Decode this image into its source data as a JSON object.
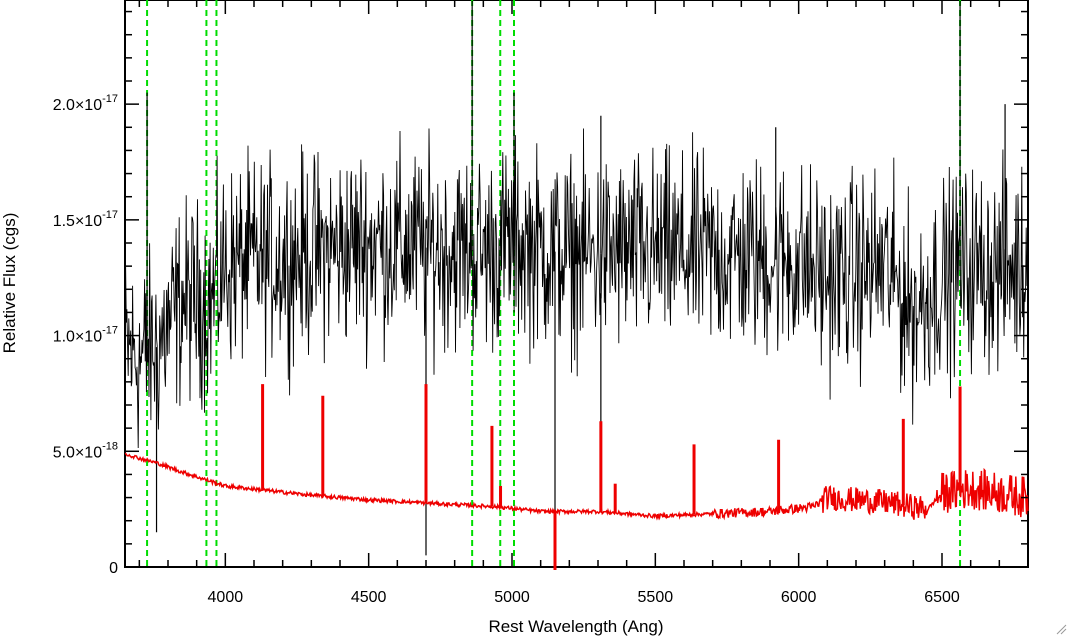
{
  "chart_data": {
    "type": "line",
    "xlabel": "Rest Wavelength (Ang)",
    "ylabel": "Relative Flux (cgs)",
    "xlim": [
      3650,
      6800
    ],
    "ylim": [
      0,
      2.45e-17
    ],
    "x_ticks": [
      {
        "value": 4000,
        "label": "4000"
      },
      {
        "value": 4500,
        "label": "4500"
      },
      {
        "value": 5000,
        "label": "5000"
      },
      {
        "value": 5500,
        "label": "5500"
      },
      {
        "value": 6000,
        "label": "6000"
      },
      {
        "value": 6500,
        "label": "6500"
      }
    ],
    "y_ticks": [
      {
        "value": 0,
        "mantissa": "0",
        "exponent": ""
      },
      {
        "value": 5e-18,
        "mantissa": "5.0×10",
        "exponent": "-18"
      },
      {
        "value": 1e-17,
        "mantissa": "1.0×10",
        "exponent": "-17"
      },
      {
        "value": 1.5e-17,
        "mantissa": "1.5×10",
        "exponent": "-17"
      },
      {
        "value": 2e-17,
        "mantissa": "2.0×10",
        "exponent": "-17"
      }
    ],
    "vlines": {
      "color": "#00dd00",
      "style": "dashed",
      "x": [
        3727,
        3934,
        3969,
        4861,
        4959,
        5007,
        6563
      ]
    },
    "series": [
      {
        "color": "#000000",
        "style": "noisy-spectrum",
        "baseline": [
          [
            3650,
            9.5e-18
          ],
          [
            3700,
            9e-18
          ],
          [
            3760,
            9.5e-18
          ],
          [
            3850,
            1.15e-17
          ],
          [
            3950,
            1.15e-17
          ],
          [
            4000,
            1.3e-17
          ],
          [
            4100,
            1.32e-17
          ],
          [
            4300,
            1.35e-17
          ],
          [
            4500,
            1.4e-17
          ],
          [
            4700,
            1.38e-17
          ],
          [
            4900,
            1.36e-17
          ],
          [
            5000,
            1.4e-17
          ],
          [
            5200,
            1.35e-17
          ],
          [
            5500,
            1.36e-17
          ],
          [
            5800,
            1.34e-17
          ],
          [
            6000,
            1.32e-17
          ],
          [
            6100,
            1.25e-17
          ],
          [
            6300,
            1.3e-17
          ],
          [
            6400,
            1.1e-17
          ],
          [
            6500,
            1.25e-17
          ],
          [
            6600,
            1.3e-17
          ],
          [
            6700,
            1.28e-17
          ],
          [
            6800,
            1.3e-17
          ]
        ],
        "features": [
          [
            3727,
            2.05e-17
          ],
          [
            3760,
            1.5e-18
          ],
          [
            4700,
            5e-19
          ],
          [
            4861,
            2.45e-17
          ],
          [
            5007,
            2.05e-17
          ],
          [
            5150,
            5e-19
          ],
          [
            5310,
            1.95e-17
          ],
          [
            5310,
            3e-18
          ],
          [
            5920,
            1.9e-17
          ],
          [
            6563,
            2.45e-17
          ],
          [
            6720,
            2e-17
          ]
        ]
      },
      {
        "color": "#ee0000",
        "style": "model-spectrum",
        "baseline": [
          [
            3650,
            4.9e-18
          ],
          [
            3700,
            4.7e-18
          ],
          [
            3760,
            4.5e-18
          ],
          [
            3850,
            4.1e-18
          ],
          [
            4000,
            3.5e-18
          ],
          [
            4150,
            3.3e-18
          ],
          [
            4300,
            3.1e-18
          ],
          [
            4500,
            2.9e-18
          ],
          [
            4800,
            2.7e-18
          ],
          [
            4950,
            2.6e-18
          ],
          [
            5100,
            2.4e-18
          ],
          [
            5300,
            2.4e-18
          ],
          [
            5500,
            2.2e-18
          ],
          [
            5700,
            2.3e-18
          ],
          [
            5900,
            2.4e-18
          ],
          [
            6050,
            2.6e-18
          ],
          [
            6100,
            3e-18
          ],
          [
            6300,
            2.8e-18
          ],
          [
            6450,
            2.5e-18
          ],
          [
            6500,
            3.2e-18
          ],
          [
            6600,
            3.4e-18
          ],
          [
            6800,
            3e-18
          ]
        ],
        "lines": [
          [
            4130,
            7.9e-18
          ],
          [
            4340,
            7.4e-18
          ],
          [
            4700,
            7.9e-18
          ],
          [
            4930,
            6.1e-18
          ],
          [
            4960,
            3.5e-18
          ],
          [
            5150,
            -3e-19
          ],
          [
            5310,
            6.3e-18
          ],
          [
            5360,
            3.6e-18
          ],
          [
            5635,
            5.3e-18
          ],
          [
            5930,
            5.5e-18
          ],
          [
            6365,
            6.4e-18
          ],
          [
            6563,
            7.8e-18
          ]
        ]
      }
    ]
  }
}
